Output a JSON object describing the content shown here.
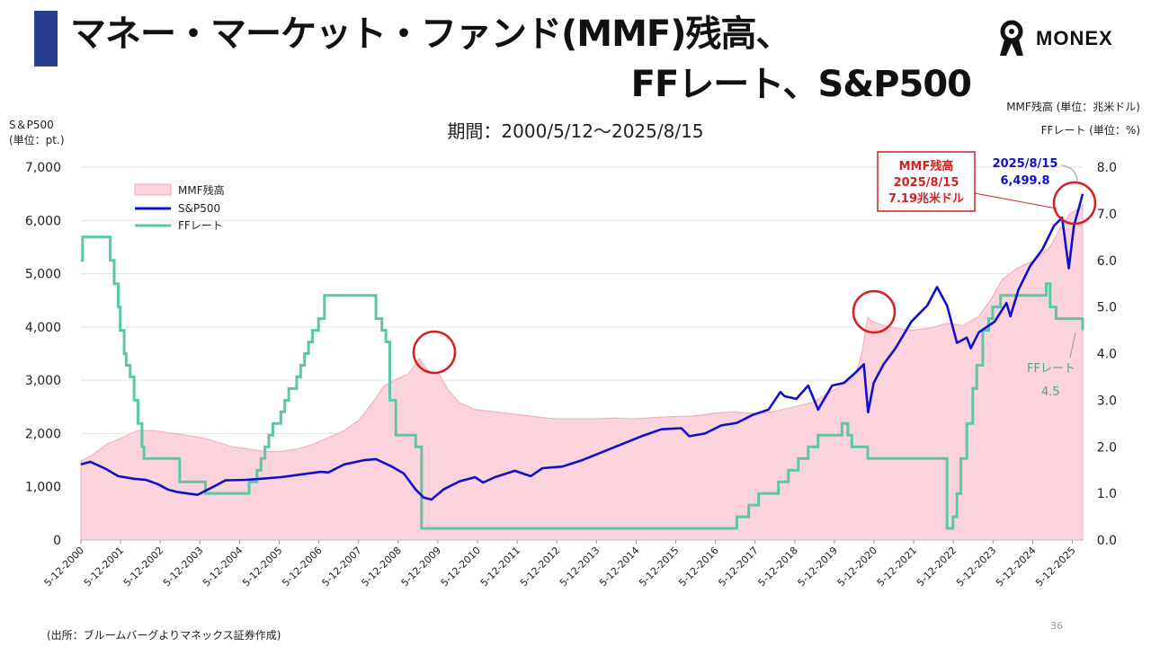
{
  "header": {
    "title_line1": "マネー・マーケット・ファンド(MMF)残高、",
    "title_line2": "FFレート、S&P500",
    "logo_text": "MONEX",
    "period": "期間：2000/5/12～2025/8/15"
  },
  "axis_units": {
    "left_line1": "S＆P500",
    "left_line2": "(単位：pt.)",
    "right_line1": "MMF残高 (単位：兆米ドル)",
    "right_line2": "FFレート (単位：%)"
  },
  "footer": {
    "source": "(出所：ブルームバーグよりマネックス証券作成)",
    "page": "36"
  },
  "colors": {
    "title_bar": "#2a3d8f",
    "mmf_fill": "#fbd3dc",
    "sp500_line": "#1010c8",
    "ff_line": "#5cc7a8",
    "highlight_circle": "#d42020"
  },
  "chart_data": {
    "type": "line",
    "title": "",
    "x_ticks": [
      "5-12-2000",
      "5-12-2001",
      "5-12-2002",
      "5-12-2003",
      "5-12-2004",
      "5-12-2005",
      "5-12-2006",
      "5-12-2007",
      "5-12-2008",
      "5-12-2009",
      "5-12-2010",
      "5-12-2011",
      "5-12-2012",
      "5-12-2013",
      "5-12-2014",
      "5-12-2015",
      "5-12-2016",
      "5-12-2017",
      "5-12-2018",
      "5-12-2019",
      "5-12-2020",
      "5-12-2021",
      "5-12-2022",
      "5-12-2023",
      "5-12-2024",
      "5-12-2025"
    ],
    "x_range": [
      2000.36,
      2025.62
    ],
    "y_left": {
      "label": "S＆P500",
      "ylim": [
        0,
        7000
      ],
      "ticks": [
        "0",
        "1,000",
        "2,000",
        "3,000",
        "4,000",
        "5,000",
        "6,000",
        "7,000"
      ]
    },
    "y_right": {
      "ylim": [
        0,
        8
      ],
      "ticks": [
        "0.0",
        "1.0",
        "2.0",
        "3.0",
        "4.0",
        "5.0",
        "6.0",
        "7.0",
        "8.0"
      ]
    },
    "legend": {
      "placement": "top-left",
      "items": [
        "MMF残高",
        "S&P500",
        "FFレート"
      ]
    },
    "grid": true,
    "series": [
      {
        "name": "MMF残高",
        "axis": "right",
        "kind": "area",
        "x": [
          2000.36,
          2000.6,
          2001.0,
          2001.4,
          2001.8,
          2002.2,
          2002.6,
          2003.0,
          2003.4,
          2003.8,
          2004.2,
          2004.6,
          2005.0,
          2005.4,
          2005.8,
          2006.2,
          2006.6,
          2007.0,
          2007.4,
          2007.8,
          2008.0,
          2008.3,
          2008.6,
          2008.9,
          2009.1,
          2009.4,
          2009.6,
          2009.9,
          2010.3,
          2010.8,
          2011.3,
          2011.8,
          2012.3,
          2012.8,
          2013.3,
          2013.8,
          2014.3,
          2014.8,
          2015.3,
          2015.8,
          2016.3,
          2016.8,
          2017.3,
          2017.8,
          2018.3,
          2018.8,
          2019.3,
          2019.8,
          2019.95,
          2020.05,
          2020.2,
          2020.3,
          2020.6,
          2020.9,
          2021.3,
          2021.8,
          2022.2,
          2022.6,
          2023.0,
          2023.3,
          2023.6,
          2024.0,
          2024.4,
          2024.8,
          2025.1,
          2025.3,
          2025.5,
          2025.62
        ],
        "values": [
          1.7,
          1.8,
          2.05,
          2.2,
          2.35,
          2.35,
          2.3,
          2.25,
          2.2,
          2.1,
          2.0,
          1.95,
          1.9,
          1.9,
          1.95,
          2.05,
          2.2,
          2.35,
          2.6,
          3.05,
          3.3,
          3.45,
          3.55,
          3.9,
          3.65,
          3.55,
          3.25,
          2.95,
          2.8,
          2.75,
          2.7,
          2.65,
          2.6,
          2.6,
          2.6,
          2.62,
          2.6,
          2.63,
          2.65,
          2.66,
          2.72,
          2.75,
          2.72,
          2.75,
          2.85,
          2.95,
          3.2,
          3.45,
          3.7,
          4.0,
          4.78,
          4.7,
          4.6,
          4.55,
          4.5,
          4.55,
          4.65,
          4.6,
          4.8,
          5.15,
          5.6,
          5.85,
          6.0,
          6.3,
          6.75,
          7.0,
          7.1,
          7.19
        ]
      },
      {
        "name": "S&P500",
        "axis": "left",
        "kind": "line",
        "x": [
          2000.36,
          2000.6,
          2000.8,
          2001.0,
          2001.3,
          2001.7,
          2002.0,
          2002.3,
          2002.55,
          2002.8,
          2003.1,
          2003.3,
          2003.7,
          2004.0,
          2004.5,
          2004.9,
          2005.4,
          2005.9,
          2006.4,
          2006.6,
          2007.0,
          2007.5,
          2007.8,
          2008.2,
          2008.5,
          2008.8,
          2009.0,
          2009.2,
          2009.5,
          2009.9,
          2010.3,
          2010.5,
          2010.8,
          2011.3,
          2011.7,
          2012.0,
          2012.5,
          2013.0,
          2013.5,
          2014.0,
          2014.5,
          2015.0,
          2015.5,
          2015.7,
          2016.1,
          2016.5,
          2016.9,
          2017.3,
          2017.7,
          2018.0,
          2018.1,
          2018.4,
          2018.7,
          2018.95,
          2019.3,
          2019.6,
          2019.9,
          2020.1,
          2020.21,
          2020.35,
          2020.6,
          2020.9,
          2021.3,
          2021.7,
          2021.95,
          2022.2,
          2022.45,
          2022.7,
          2022.8,
          2023.0,
          2023.4,
          2023.7,
          2023.8,
          2024.0,
          2024.3,
          2024.6,
          2024.9,
          2025.1,
          2025.27,
          2025.4,
          2025.55,
          2025.62
        ],
        "values": [
          1420,
          1470,
          1400,
          1330,
          1200,
          1150,
          1130,
          1050,
          950,
          900,
          870,
          850,
          1000,
          1120,
          1130,
          1150,
          1180,
          1230,
          1280,
          1270,
          1420,
          1500,
          1520,
          1380,
          1250,
          950,
          800,
          760,
          950,
          1100,
          1180,
          1080,
          1180,
          1300,
          1200,
          1350,
          1380,
          1500,
          1650,
          1800,
          1950,
          2080,
          2100,
          1950,
          2000,
          2150,
          2200,
          2350,
          2450,
          2780,
          2700,
          2650,
          2900,
          2450,
          2900,
          2950,
          3150,
          3300,
          2400,
          2950,
          3300,
          3600,
          4100,
          4400,
          4750,
          4400,
          3700,
          3800,
          3600,
          3900,
          4100,
          4450,
          4200,
          4700,
          5150,
          5450,
          5900,
          6050,
          5100,
          5900,
          6300,
          6499.8
        ]
      },
      {
        "name": "FFレート",
        "axis": "right",
        "kind": "step",
        "x": [
          2000.36,
          2000.4,
          2001.0,
          2001.1,
          2001.2,
          2001.3,
          2001.35,
          2001.45,
          2001.5,
          2001.6,
          2001.7,
          2001.8,
          2001.9,
          2001.95,
          2002.85,
          2003.5,
          2004.5,
          2004.6,
          2004.8,
          2004.9,
          2005.0,
          2005.1,
          2005.2,
          2005.4,
          2005.5,
          2005.6,
          2005.8,
          2005.9,
          2006.0,
          2006.1,
          2006.2,
          2006.35,
          2006.5,
          2007.7,
          2007.8,
          2007.95,
          2008.05,
          2008.15,
          2008.3,
          2008.8,
          2008.95,
          2015.9,
          2016.9,
          2017.2,
          2017.45,
          2017.95,
          2018.2,
          2018.45,
          2018.7,
          2018.95,
          2019.55,
          2019.7,
          2019.8,
          2020.2,
          2022.2,
          2022.35,
          2022.45,
          2022.55,
          2022.7,
          2022.85,
          2022.95,
          2023.1,
          2023.25,
          2023.35,
          2023.55,
          2024.7,
          2024.8,
          2024.95,
          2025.62
        ],
        "values": [
          6.0,
          6.5,
          6.5,
          6.0,
          5.5,
          5.0,
          4.5,
          4.0,
          3.75,
          3.5,
          3.0,
          2.5,
          2.0,
          1.75,
          1.25,
          1.0,
          1.0,
          1.25,
          1.5,
          1.75,
          2.0,
          2.25,
          2.5,
          2.75,
          3.0,
          3.25,
          3.5,
          3.75,
          4.0,
          4.25,
          4.5,
          4.75,
          5.25,
          5.25,
          4.75,
          4.5,
          4.25,
          3.0,
          2.25,
          2.0,
          0.25,
          0.25,
          0.5,
          0.75,
          1.0,
          1.25,
          1.5,
          1.75,
          2.0,
          2.25,
          2.5,
          2.25,
          2.0,
          1.75,
          0.25,
          0.5,
          1.0,
          1.75,
          2.5,
          3.25,
          3.75,
          4.5,
          4.75,
          5.0,
          5.25,
          5.5,
          5.0,
          4.75,
          4.5
        ]
      }
    ],
    "annotations": {
      "mmf_callout": [
        "MMF残高",
        "2025/8/15",
        "7.19兆米ドル"
      ],
      "sp500_callout": [
        "2025/8/15",
        "6,499.8"
      ],
      "ff_callout": [
        "FFレート",
        "4.5"
      ],
      "highlight_circles": [
        "2008-2009 MMF peak",
        "2020 MMF peak",
        "2025 latest values"
      ]
    }
  }
}
